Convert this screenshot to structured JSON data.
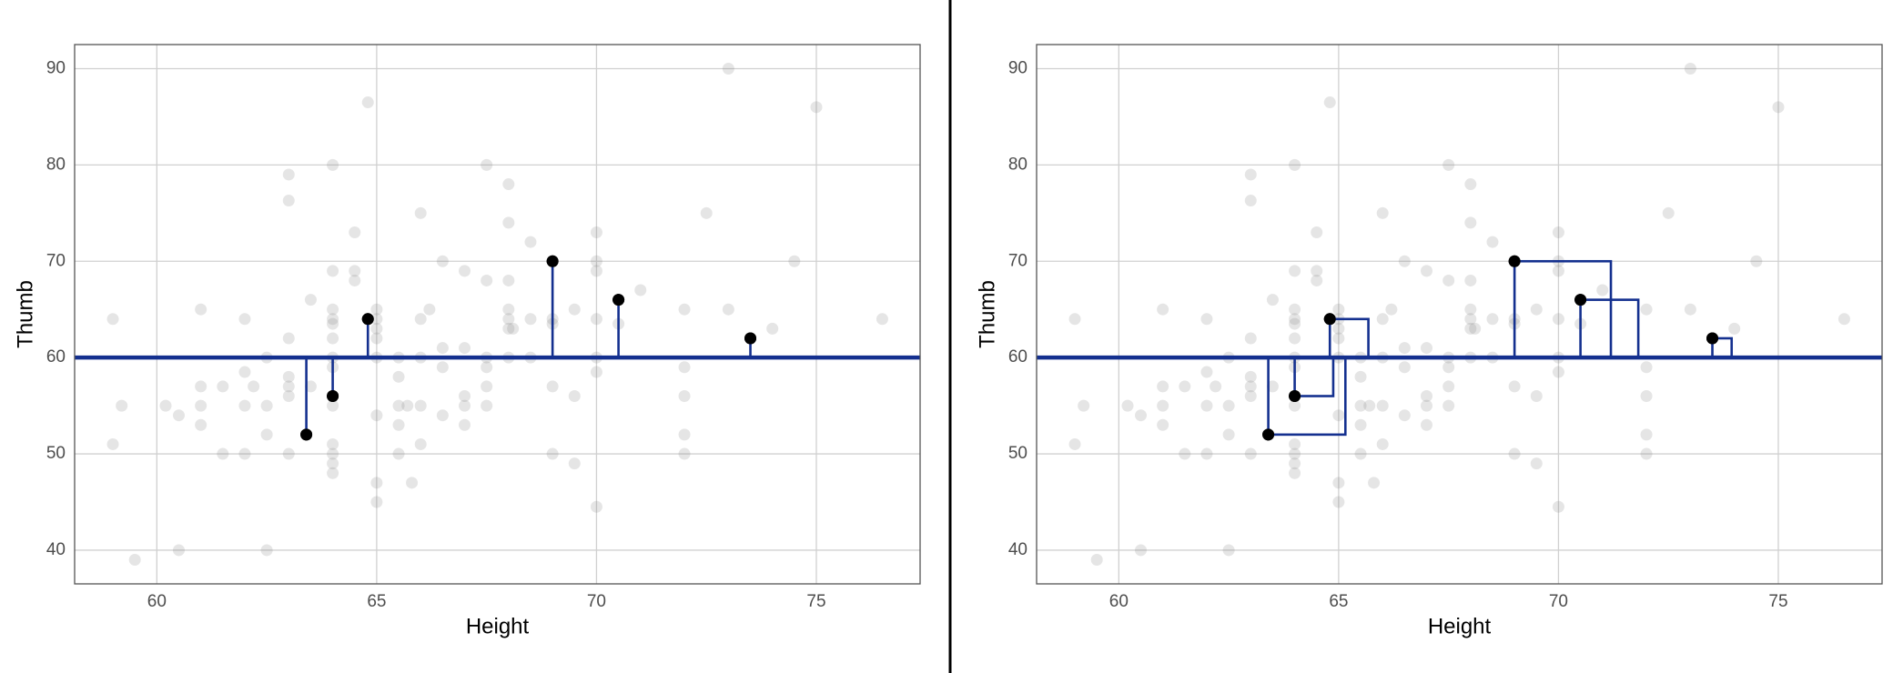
{
  "chart_data": [
    {
      "type": "scatter",
      "residuals": "lines",
      "xlabel": "Height",
      "ylabel": "Thumb",
      "xlim": [
        58.13,
        77.36
      ],
      "ylim": [
        36.5,
        92.5
      ],
      "xticks": [
        60,
        65,
        70,
        75
      ],
      "yticks": [
        40,
        50,
        60,
        70,
        80,
        90
      ],
      "grid": true,
      "mean": 60,
      "mean_color": "#14308f",
      "series": [
        {
          "color": "#888888",
          "opacity": 0.22,
          "x": [
            59,
            59.2,
            59,
            59.5,
            60.5,
            60.2,
            60.5,
            61,
            61,
            61,
            61,
            61.5,
            61.5,
            62,
            62,
            62,
            62,
            62.2,
            62.5,
            62.5,
            62.5,
            62.5,
            63,
            63,
            63,
            63,
            63,
            63,
            63,
            63.5,
            63.5,
            64,
            64,
            64,
            64,
            64,
            64,
            64,
            64,
            64,
            64,
            64,
            64,
            64,
            64.5,
            64.5,
            64.5,
            64.8,
            65,
            65,
            65,
            65,
            65,
            65,
            65,
            65,
            65.5,
            65.5,
            65.5,
            65.5,
            65.5,
            65.7,
            65.8,
            66,
            66,
            66,
            66,
            66,
            66.2,
            66.5,
            66.5,
            66.5,
            66.5,
            67,
            67,
            67,
            67,
            67,
            67.5,
            67.5,
            67.5,
            67.5,
            67.5,
            67.5,
            68,
            68,
            68,
            68,
            68,
            68,
            68,
            68.1,
            68.5,
            68.5,
            68.5,
            69,
            69,
            69,
            69,
            69.5,
            69.5,
            69.5,
            70,
            70,
            70,
            70,
            70,
            70,
            70,
            70.5,
            71,
            72,
            72,
            72,
            72,
            72,
            72.5,
            73,
            73,
            74,
            74.5,
            75,
            76.5
          ],
          "values": [
            64,
            55,
            51,
            39,
            40,
            55,
            54,
            65,
            57,
            55,
            53,
            57,
            50,
            64,
            58.5,
            55,
            50,
            57,
            60,
            55,
            52,
            40,
            79,
            76.3,
            62,
            58,
            57,
            56,
            50,
            66,
            57,
            80,
            69,
            65,
            64,
            63.5,
            62,
            60,
            59,
            55,
            51,
            50,
            49,
            48,
            73,
            69,
            68,
            86.5,
            65,
            64,
            63,
            62,
            60,
            54,
            47,
            45,
            60,
            58,
            55,
            53,
            50,
            55,
            47,
            75,
            64,
            60,
            55,
            51,
            65,
            70,
            61,
            59,
            54,
            69,
            61,
            56,
            55,
            53,
            80,
            68,
            60,
            59,
            57,
            55,
            78,
            74,
            68,
            65,
            64,
            63,
            60,
            63,
            72,
            64,
            60,
            64,
            63.5,
            57,
            50,
            65,
            56,
            49,
            73,
            70,
            69,
            64,
            60,
            58.5,
            44.5,
            63.5,
            67,
            65,
            59,
            56,
            52,
            50,
            75,
            90,
            65,
            63,
            70,
            86,
            64
          ]
        },
        {
          "color": "#000000",
          "opacity": 1,
          "x": [
            63.4,
            64,
            64.8,
            69,
            70.5,
            73.5
          ],
          "values": [
            52,
            56,
            64,
            70,
            66,
            62
          ]
        }
      ]
    },
    {
      "type": "scatter",
      "residuals": "squares",
      "xlabel": "Height",
      "ylabel": "Thumb",
      "xlim": [
        58.13,
        77.36
      ],
      "ylim": [
        36.5,
        92.5
      ],
      "xticks": [
        60,
        65,
        70,
        75
      ],
      "yticks": [
        40,
        50,
        60,
        70,
        80,
        90
      ],
      "grid": true,
      "mean": 60,
      "mean_color": "#14308f",
      "series": [
        {
          "color": "#888888",
          "opacity": 0.22,
          "x": [
            59,
            59.2,
            59,
            59.5,
            60.5,
            60.2,
            60.5,
            61,
            61,
            61,
            61,
            61.5,
            61.5,
            62,
            62,
            62,
            62,
            62.2,
            62.5,
            62.5,
            62.5,
            62.5,
            63,
            63,
            63,
            63,
            63,
            63,
            63,
            63.5,
            63.5,
            64,
            64,
            64,
            64,
            64,
            64,
            64,
            64,
            64,
            64,
            64,
            64,
            64,
            64.5,
            64.5,
            64.5,
            64.8,
            65,
            65,
            65,
            65,
            65,
            65,
            65,
            65,
            65.5,
            65.5,
            65.5,
            65.5,
            65.5,
            65.7,
            65.8,
            66,
            66,
            66,
            66,
            66,
            66.2,
            66.5,
            66.5,
            66.5,
            66.5,
            67,
            67,
            67,
            67,
            67,
            67.5,
            67.5,
            67.5,
            67.5,
            67.5,
            67.5,
            68,
            68,
            68,
            68,
            68,
            68,
            68,
            68.1,
            68.5,
            68.5,
            68.5,
            69,
            69,
            69,
            69,
            69.5,
            69.5,
            69.5,
            70,
            70,
            70,
            70,
            70,
            70,
            70,
            70.5,
            71,
            72,
            72,
            72,
            72,
            72,
            72.5,
            73,
            73,
            74,
            74.5,
            75,
            76.5
          ],
          "values": [
            64,
            55,
            51,
            39,
            40,
            55,
            54,
            65,
            57,
            55,
            53,
            57,
            50,
            64,
            58.5,
            55,
            50,
            57,
            60,
            55,
            52,
            40,
            79,
            76.3,
            62,
            58,
            57,
            56,
            50,
            66,
            57,
            80,
            69,
            65,
            64,
            63.5,
            62,
            60,
            59,
            55,
            51,
            50,
            49,
            48,
            73,
            69,
            68,
            86.5,
            65,
            64,
            63,
            62,
            60,
            54,
            47,
            45,
            60,
            58,
            55,
            53,
            50,
            55,
            47,
            75,
            64,
            60,
            55,
            51,
            65,
            70,
            61,
            59,
            54,
            69,
            61,
            56,
            55,
            53,
            80,
            68,
            60,
            59,
            57,
            55,
            78,
            74,
            68,
            65,
            64,
            63,
            60,
            63,
            72,
            64,
            60,
            64,
            63.5,
            57,
            50,
            65,
            56,
            49,
            73,
            70,
            69,
            64,
            60,
            58.5,
            44.5,
            63.5,
            67,
            65,
            59,
            56,
            52,
            50,
            75,
            90,
            65,
            63,
            70,
            86,
            64
          ]
        },
        {
          "color": "#000000",
          "opacity": 1,
          "x": [
            63.4,
            64,
            64.8,
            69,
            70.5,
            73.5
          ],
          "values": [
            52,
            56,
            64,
            70,
            66,
            62
          ]
        }
      ]
    }
  ]
}
